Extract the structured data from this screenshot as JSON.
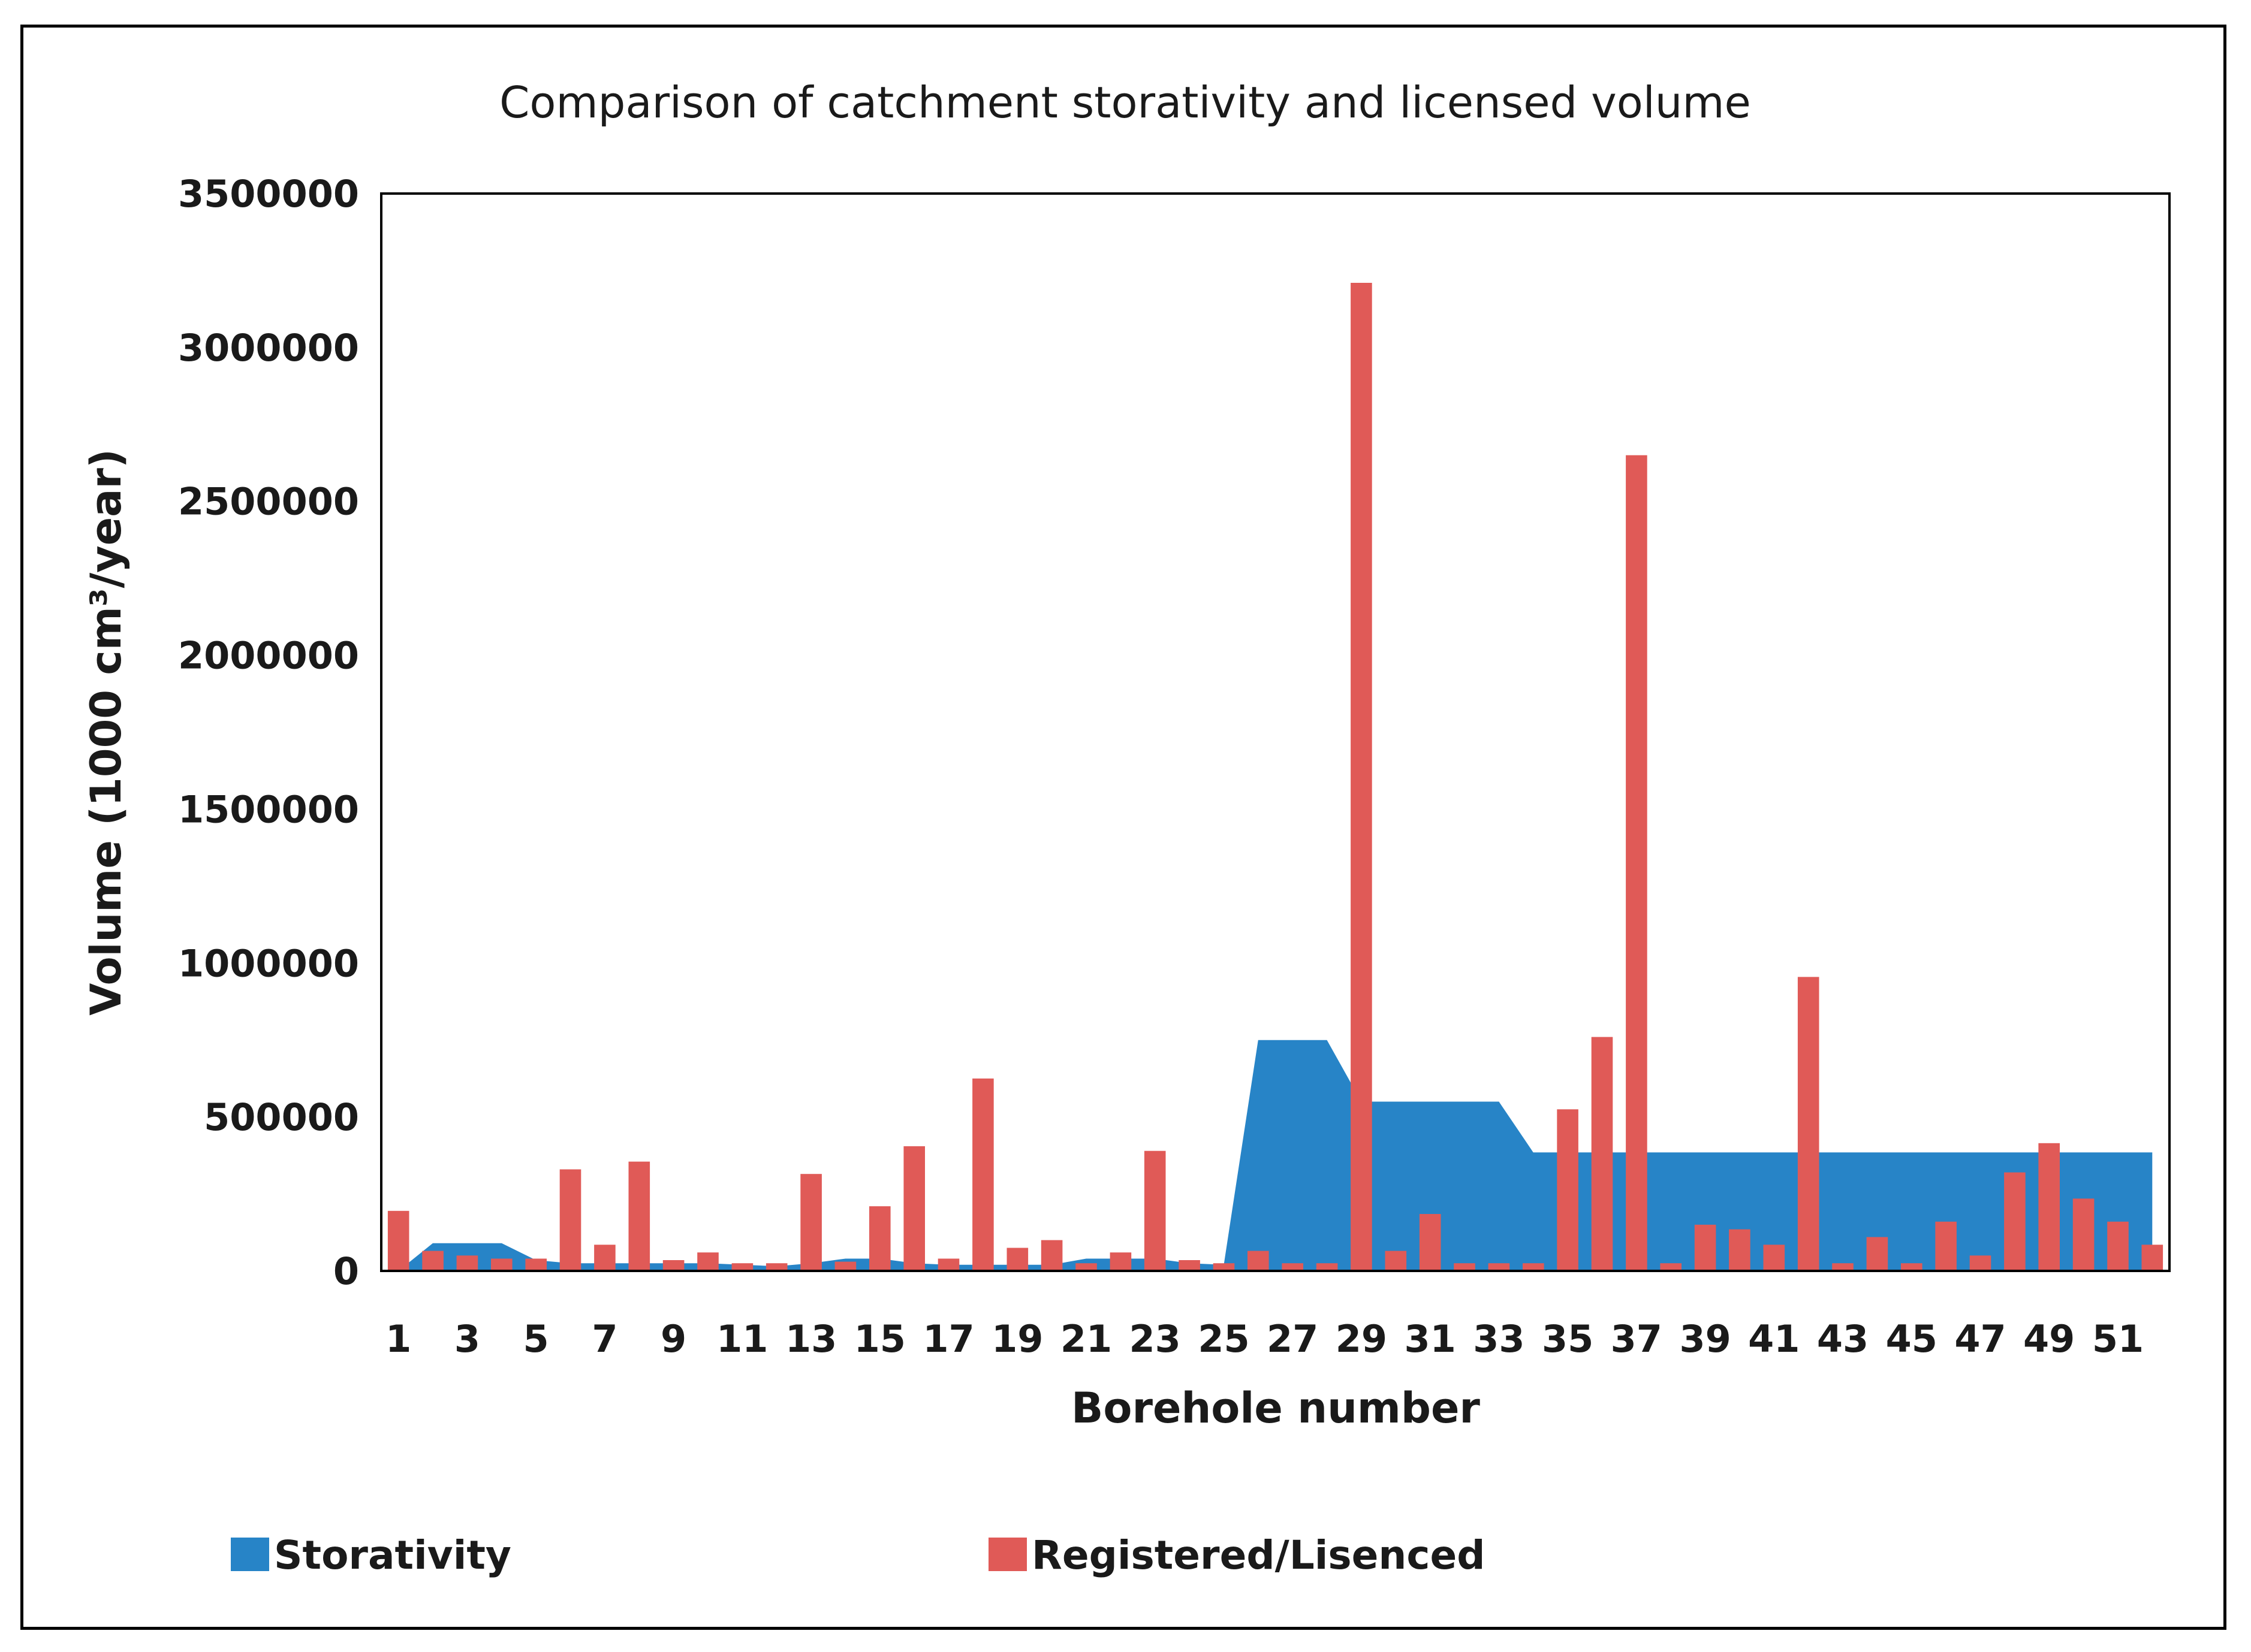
{
  "chart_data": {
    "type": "bar",
    "title": "Comparison of catchment storativity and licensed volume",
    "xlabel": "Borehole number",
    "ylabel": "Volume (1000 cm³/year)",
    "ylim": [
      0,
      3500000
    ],
    "yticks": [
      0,
      500000,
      1000000,
      1500000,
      2000000,
      2500000,
      3000000,
      3500000
    ],
    "ytick_labels": [
      "0",
      "500000",
      "1000000",
      "1500000",
      "2000000",
      "2500000",
      "3000000",
      "3500000"
    ],
    "xtick_labels": [
      "1",
      "3",
      "5",
      "7",
      "9",
      "11",
      "13",
      "15",
      "17",
      "19",
      "21",
      "23",
      "25",
      "27",
      "29",
      "31",
      "33",
      "35",
      "37",
      "39",
      "41",
      "43",
      "45",
      "47",
      "49",
      "51"
    ],
    "categories": [
      1,
      2,
      3,
      4,
      5,
      6,
      7,
      8,
      9,
      10,
      11,
      12,
      13,
      14,
      15,
      16,
      17,
      18,
      19,
      20,
      21,
      22,
      23,
      24,
      25,
      26,
      27,
      28,
      29,
      30,
      31,
      32,
      33,
      34,
      35,
      36,
      37,
      38,
      39,
      40,
      41,
      42,
      43,
      44,
      45,
      46,
      47,
      48,
      49,
      50,
      51,
      52
    ],
    "legend_position": "bottom",
    "series": [
      {
        "name": "Storativity",
        "kind": "area",
        "color": "#2784c7",
        "values": [
          0,
          90000,
          90000,
          90000,
          35000,
          25000,
          25000,
          25000,
          25000,
          25000,
          20000,
          15000,
          25000,
          40000,
          40000,
          25000,
          20000,
          20000,
          20000,
          20000,
          40000,
          40000,
          40000,
          25000,
          20000,
          750000,
          750000,
          750000,
          550000,
          550000,
          550000,
          550000,
          550000,
          385000,
          385000,
          385000,
          385000,
          385000,
          385000,
          385000,
          385000,
          385000,
          385000,
          385000,
          385000,
          385000,
          385000,
          385000,
          385000,
          385000,
          385000,
          385000
        ]
      },
      {
        "name": "Registered/Lisenced",
        "kind": "bar",
        "color": "#e05a57",
        "values": [
          195000,
          65000,
          50000,
          40000,
          40000,
          330000,
          85000,
          355000,
          35000,
          60000,
          25000,
          25000,
          315000,
          30000,
          210000,
          405000,
          40000,
          625000,
          75000,
          100000,
          25000,
          60000,
          390000,
          35000,
          25000,
          65000,
          25000,
          25000,
          3210000,
          65000,
          185000,
          25000,
          25000,
          25000,
          525000,
          760000,
          2650000,
          25000,
          150000,
          135000,
          85000,
          955000,
          25000,
          110000,
          25000,
          160000,
          50000,
          320000,
          415000,
          235000,
          160000,
          85000
        ]
      }
    ]
  }
}
